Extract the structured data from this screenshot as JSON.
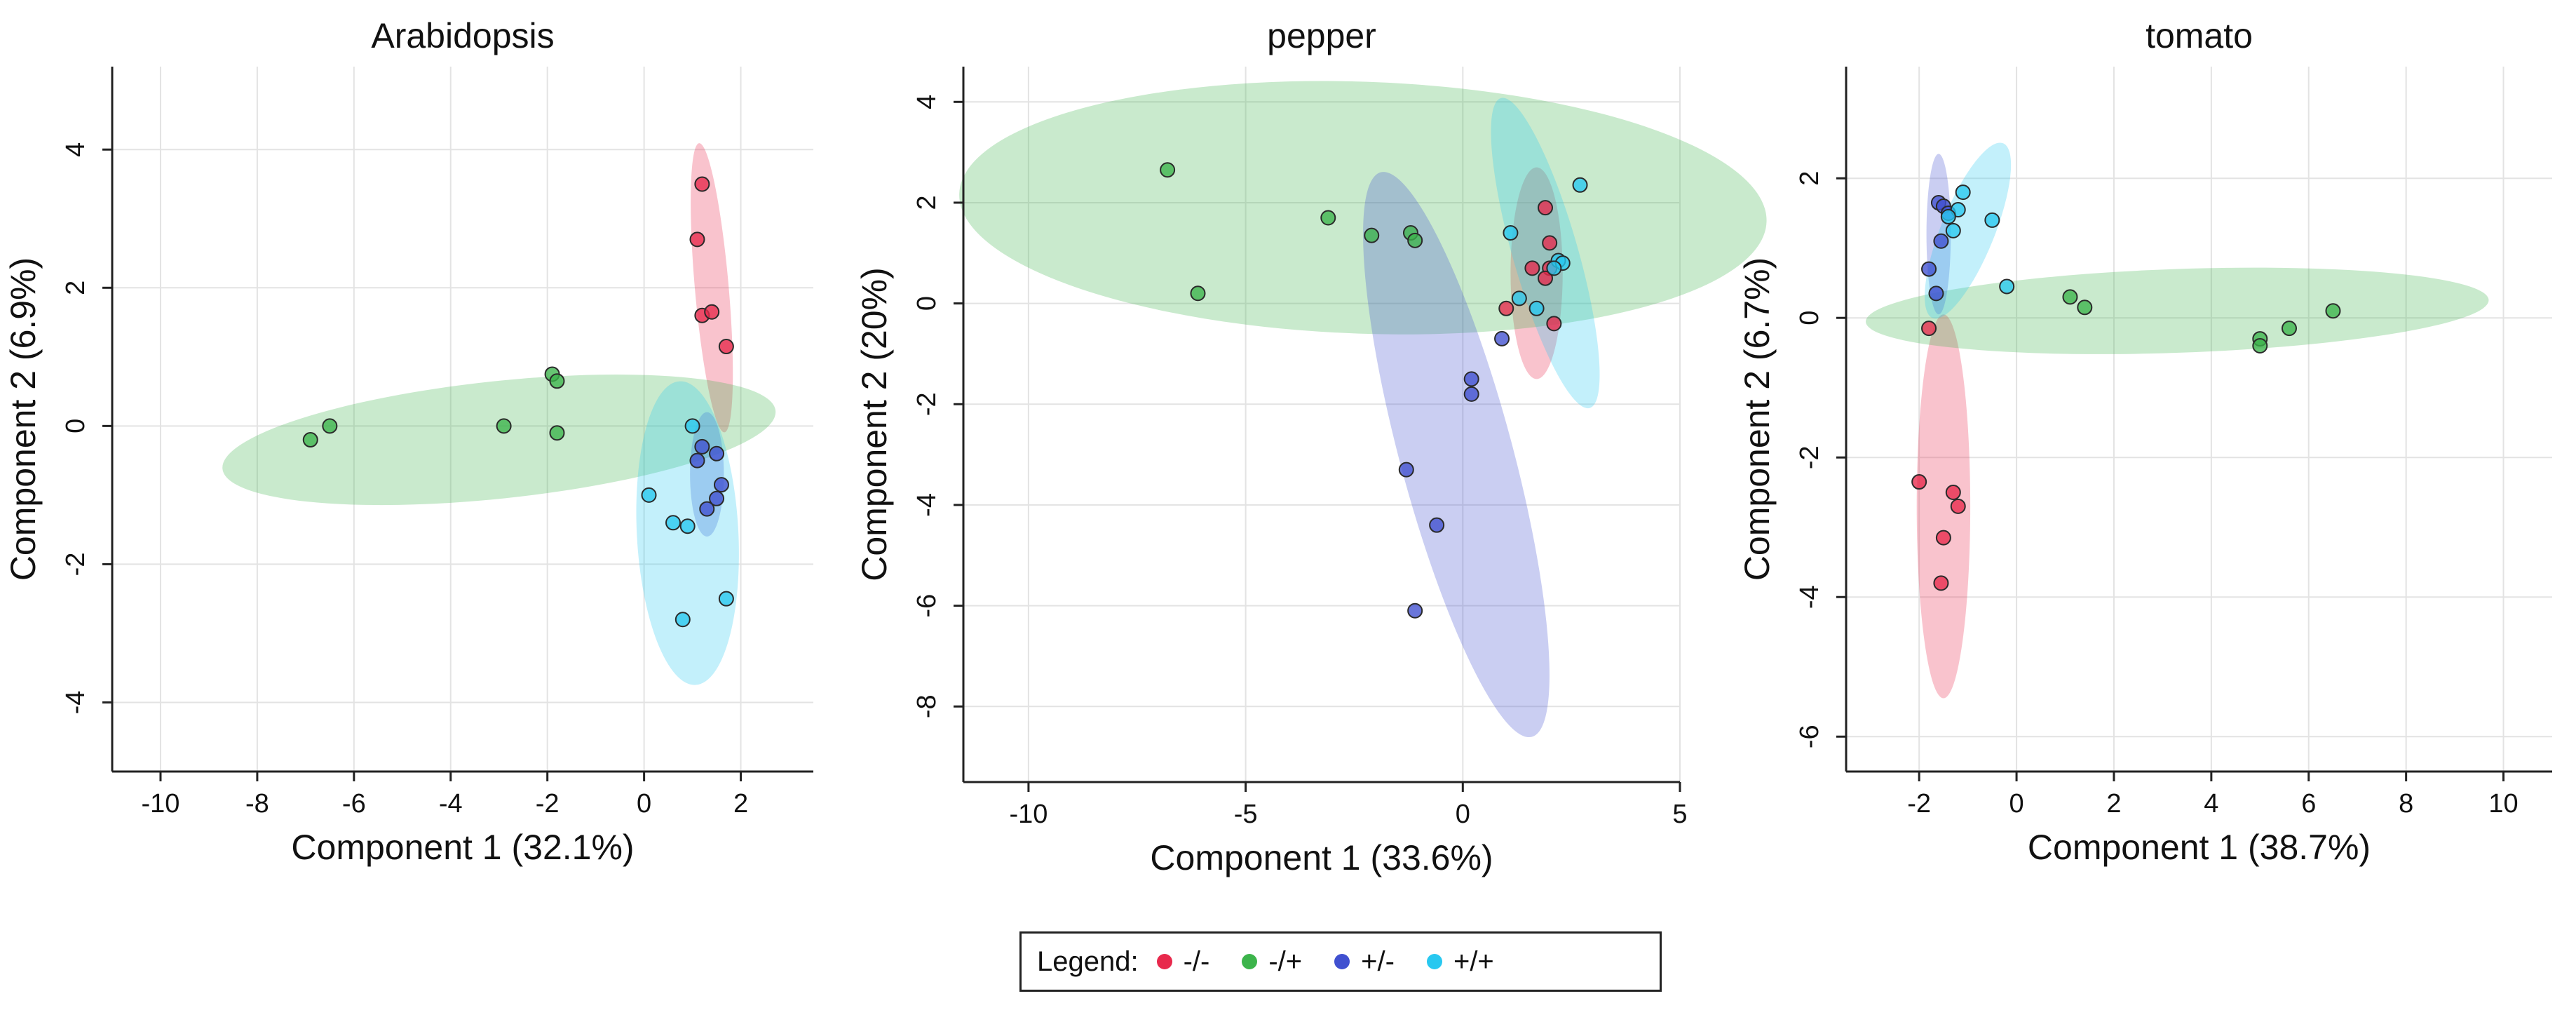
{
  "legend": {
    "title": "Legend:",
    "items": [
      {
        "label": "-/-",
        "color": "#e8294c"
      },
      {
        "label": "-/+",
        "color": "#3cb44b"
      },
      {
        "label": "+/-",
        "color": "#4050d0"
      },
      {
        "label": "+/+",
        "color": "#28c8f0"
      }
    ]
  },
  "chart_data": [
    {
      "type": "scatter",
      "title": "Arabidopsis",
      "xlabel": "Component 1 (32.1%)",
      "ylabel": "Component 2 (6.9%)",
      "xlim": [
        -11,
        3.5
      ],
      "ylim": [
        -5,
        5.2
      ],
      "xticks": [
        -10,
        -8,
        -6,
        -4,
        -2,
        0,
        2
      ],
      "yticks": [
        -4,
        -2,
        0,
        2,
        4
      ],
      "series": [
        {
          "name": "-/-",
          "points": [
            [
              1.2,
              3.5
            ],
            [
              1.1,
              2.7
            ],
            [
              1.2,
              1.6
            ],
            [
              1.4,
              1.65
            ],
            [
              1.7,
              1.15
            ]
          ],
          "ellipse": {
            "cx": 1.4,
            "cy": 2.0,
            "rx": 0.35,
            "ry": 2.1,
            "angle": 5
          }
        },
        {
          "name": "-/+",
          "points": [
            [
              -6.9,
              -0.2
            ],
            [
              -6.5,
              0.0
            ],
            [
              -2.9,
              0.0
            ],
            [
              -1.9,
              0.75
            ],
            [
              -1.8,
              0.65
            ],
            [
              -1.8,
              -0.1
            ]
          ],
          "ellipse": {
            "cx": -3.0,
            "cy": -0.2,
            "rx": 5.75,
            "ry": 0.85,
            "angle": 6
          }
        },
        {
          "name": "+/-",
          "points": [
            [
              1.2,
              -0.3
            ],
            [
              1.5,
              -0.4
            ],
            [
              1.1,
              -0.5
            ],
            [
              1.6,
              -0.85
            ],
            [
              1.5,
              -1.05
            ],
            [
              1.3,
              -1.2
            ]
          ],
          "ellipse": {
            "cx": 1.3,
            "cy": -0.7,
            "rx": 0.35,
            "ry": 0.9,
            "angle": 0
          }
        },
        {
          "name": "+/+",
          "points": [
            [
              1.0,
              0.0
            ],
            [
              0.1,
              -1.0
            ],
            [
              0.6,
              -1.4
            ],
            [
              0.9,
              -1.45
            ],
            [
              0.8,
              -2.8
            ],
            [
              1.7,
              -2.5
            ]
          ],
          "ellipse": {
            "cx": 0.9,
            "cy": -1.55,
            "rx": 1.05,
            "ry": 2.2,
            "angle": 3
          }
        }
      ]
    },
    {
      "type": "scatter",
      "title": "pepper",
      "xlabel": "Component 1 (33.6%)",
      "ylabel": "Component 2 (20%)",
      "xlim": [
        -11.5,
        5
      ],
      "ylim": [
        -9.5,
        4.7
      ],
      "xticks": [
        -10,
        -5,
        0,
        5
      ],
      "yticks": [
        -8,
        -6,
        -4,
        -2,
        0,
        2,
        4
      ],
      "series": [
        {
          "name": "-/-",
          "points": [
            [
              1.9,
              1.9
            ],
            [
              2.0,
              1.2
            ],
            [
              1.6,
              0.7
            ],
            [
              2.0,
              0.7
            ],
            [
              1.0,
              -0.1
            ],
            [
              1.9,
              0.5
            ],
            [
              2.1,
              -0.4
            ]
          ],
          "ellipse": {
            "cx": 1.7,
            "cy": 0.6,
            "rx": 0.6,
            "ry": 2.1,
            "angle": 0
          }
        },
        {
          "name": "-/+",
          "points": [
            [
              -6.8,
              2.65
            ],
            [
              -6.1,
              0.2
            ],
            [
              -3.1,
              1.7
            ],
            [
              -2.1,
              1.35
            ],
            [
              -1.2,
              1.4
            ],
            [
              -1.1,
              1.25
            ]
          ],
          "ellipse": {
            "cx": -2.3,
            "cy": 1.9,
            "rx": 9.3,
            "ry": 2.5,
            "angle": -2
          }
        },
        {
          "name": "+/-",
          "points": [
            [
              0.9,
              -0.7
            ],
            [
              0.2,
              -1.5
            ],
            [
              0.2,
              -1.8
            ],
            [
              -1.3,
              -3.3
            ],
            [
              -0.6,
              -4.4
            ],
            [
              -1.1,
              -6.1
            ]
          ],
          "ellipse": {
            "cx": -0.15,
            "cy": -3.0,
            "rx": 1.3,
            "ry": 5.8,
            "angle": 15
          }
        },
        {
          "name": "+/+",
          "points": [
            [
              1.1,
              1.4
            ],
            [
              2.7,
              2.35
            ],
            [
              2.2,
              0.85
            ],
            [
              1.7,
              -0.1
            ],
            [
              2.3,
              0.8
            ],
            [
              2.1,
              0.7
            ],
            [
              1.3,
              0.1
            ]
          ],
          "ellipse": {
            "cx": 1.9,
            "cy": 1.0,
            "rx": 0.75,
            "ry": 3.2,
            "angle": 16
          }
        }
      ]
    },
    {
      "type": "scatter",
      "title": "tomato",
      "xlabel": "Component 1 (38.7%)",
      "ylabel": "Component 2 (6.7%)",
      "xlim": [
        -3.5,
        11
      ],
      "ylim": [
        -6.5,
        3.6
      ],
      "xticks": [
        -2,
        0,
        2,
        4,
        6,
        8,
        10
      ],
      "yticks": [
        -6,
        -4,
        -2,
        0,
        2
      ],
      "series": [
        {
          "name": "-/-",
          "points": [
            [
              -1.8,
              -0.15
            ],
            [
              -2.0,
              -2.35
            ],
            [
              -1.3,
              -2.5
            ],
            [
              -1.2,
              -2.7
            ],
            [
              -1.5,
              -3.15
            ],
            [
              -1.55,
              -3.8
            ]
          ],
          "ellipse": {
            "cx": -1.5,
            "cy": -2.7,
            "rx": 0.55,
            "ry": 2.75,
            "angle": 0
          }
        },
        {
          "name": "-/+",
          "points": [
            [
              1.1,
              0.3
            ],
            [
              1.4,
              0.15
            ],
            [
              5.0,
              -0.3
            ],
            [
              5.0,
              -0.4
            ],
            [
              5.6,
              -0.15
            ],
            [
              6.5,
              0.1
            ]
          ],
          "ellipse": {
            "cx": 3.3,
            "cy": 0.1,
            "rx": 6.4,
            "ry": 0.6,
            "angle": 2
          }
        },
        {
          "name": "+/-",
          "points": [
            [
              -1.6,
              1.65
            ],
            [
              -1.5,
              1.6
            ],
            [
              -1.4,
              1.5
            ],
            [
              -1.55,
              1.1
            ],
            [
              -1.8,
              0.7
            ],
            [
              -1.65,
              0.35
            ]
          ],
          "ellipse": {
            "cx": -1.6,
            "cy": 1.2,
            "rx": 0.25,
            "ry": 1.15,
            "angle": 0
          }
        },
        {
          "name": "+/+",
          "points": [
            [
              -1.1,
              1.8
            ],
            [
              -1.2,
              1.55
            ],
            [
              -0.5,
              1.4
            ],
            [
              -1.4,
              1.45
            ],
            [
              -1.3,
              1.25
            ],
            [
              -0.2,
              0.45
            ]
          ],
          "ellipse": {
            "cx": -1.0,
            "cy": 1.25,
            "rx": 0.55,
            "ry": 1.35,
            "angle": -22
          }
        }
      ]
    }
  ]
}
